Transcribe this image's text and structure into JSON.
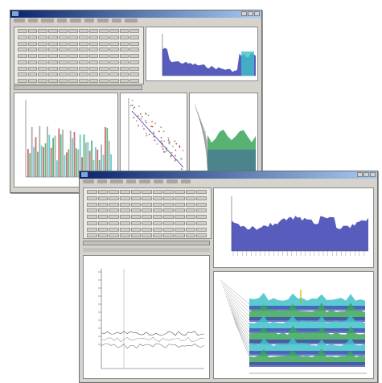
{
  "windows": [
    {
      "id": "back",
      "title": "",
      "panes": [
        "toolbar-grid",
        "area-chart-top",
        "bar-chart",
        "scatter-chart",
        "surface-chart"
      ]
    },
    {
      "id": "front",
      "title": "",
      "panes": [
        "toolbar-grid",
        "area-chart",
        "line-chart",
        "waterfall-chart"
      ]
    }
  ],
  "colors": {
    "window_face": "#d6d3ce",
    "title_active": "#0a246a",
    "series_blue": "#3b3fb0",
    "series_green": "#3aa55a",
    "series_cyan": "#3fc1c9",
    "series_gray": "#9a9a9a",
    "series_red": "#c24a4a"
  },
  "icons": [
    "window-menu-icon",
    "minimize-icon",
    "maximize-icon",
    "close-icon"
  ]
}
